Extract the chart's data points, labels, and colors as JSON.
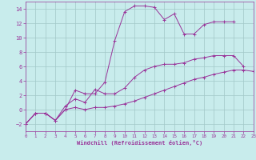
{
  "background_color": "#c8ecec",
  "grid_color": "#a0c8c8",
  "line_color": "#993399",
  "xlabel": "Windchill (Refroidissement éolien,°C)",
  "xlim": [
    0,
    23
  ],
  "ylim": [
    -3,
    15
  ],
  "xticks": [
    0,
    1,
    2,
    3,
    4,
    5,
    6,
    7,
    8,
    9,
    10,
    11,
    12,
    13,
    14,
    15,
    16,
    17,
    18,
    19,
    20,
    21,
    22,
    23
  ],
  "yticks": [
    -2,
    0,
    2,
    4,
    6,
    8,
    10,
    12,
    14
  ],
  "line1_x": [
    0,
    1,
    2,
    3,
    4,
    5,
    6,
    7,
    8,
    9,
    10,
    11,
    12,
    13,
    14,
    15,
    16,
    17,
    18,
    19,
    20,
    21
  ],
  "line1_y": [
    -2,
    -0.5,
    -0.5,
    -1.5,
    0.0,
    2.7,
    2.2,
    2.2,
    3.8,
    9.6,
    13.6,
    14.4,
    14.4,
    14.2,
    12.5,
    13.3,
    10.5,
    10.5,
    11.8,
    12.2,
    12.2,
    12.2
  ],
  "line2_x": [
    0,
    1,
    2,
    3,
    4,
    5,
    6,
    7,
    8,
    9,
    10,
    11,
    12,
    13,
    14,
    15,
    16,
    17,
    18,
    19,
    20,
    21,
    22
  ],
  "line2_y": [
    -2,
    -0.5,
    -0.5,
    -1.5,
    0.5,
    1.5,
    1.0,
    2.8,
    2.2,
    2.2,
    3.0,
    4.5,
    5.5,
    6.0,
    6.3,
    6.3,
    6.5,
    7.0,
    7.2,
    7.5,
    7.5,
    7.5,
    6.0
  ],
  "line3_x": [
    0,
    1,
    2,
    3,
    4,
    5,
    6,
    7,
    8,
    9,
    10,
    11,
    12,
    13,
    14,
    15,
    16,
    17,
    18,
    19,
    20,
    21,
    22,
    23
  ],
  "line3_y": [
    -2,
    -0.5,
    -0.5,
    -1.5,
    0.0,
    0.3,
    0.0,
    0.3,
    0.3,
    0.5,
    0.8,
    1.2,
    1.7,
    2.2,
    2.7,
    3.2,
    3.7,
    4.2,
    4.5,
    4.9,
    5.2,
    5.5,
    5.5,
    5.3
  ]
}
